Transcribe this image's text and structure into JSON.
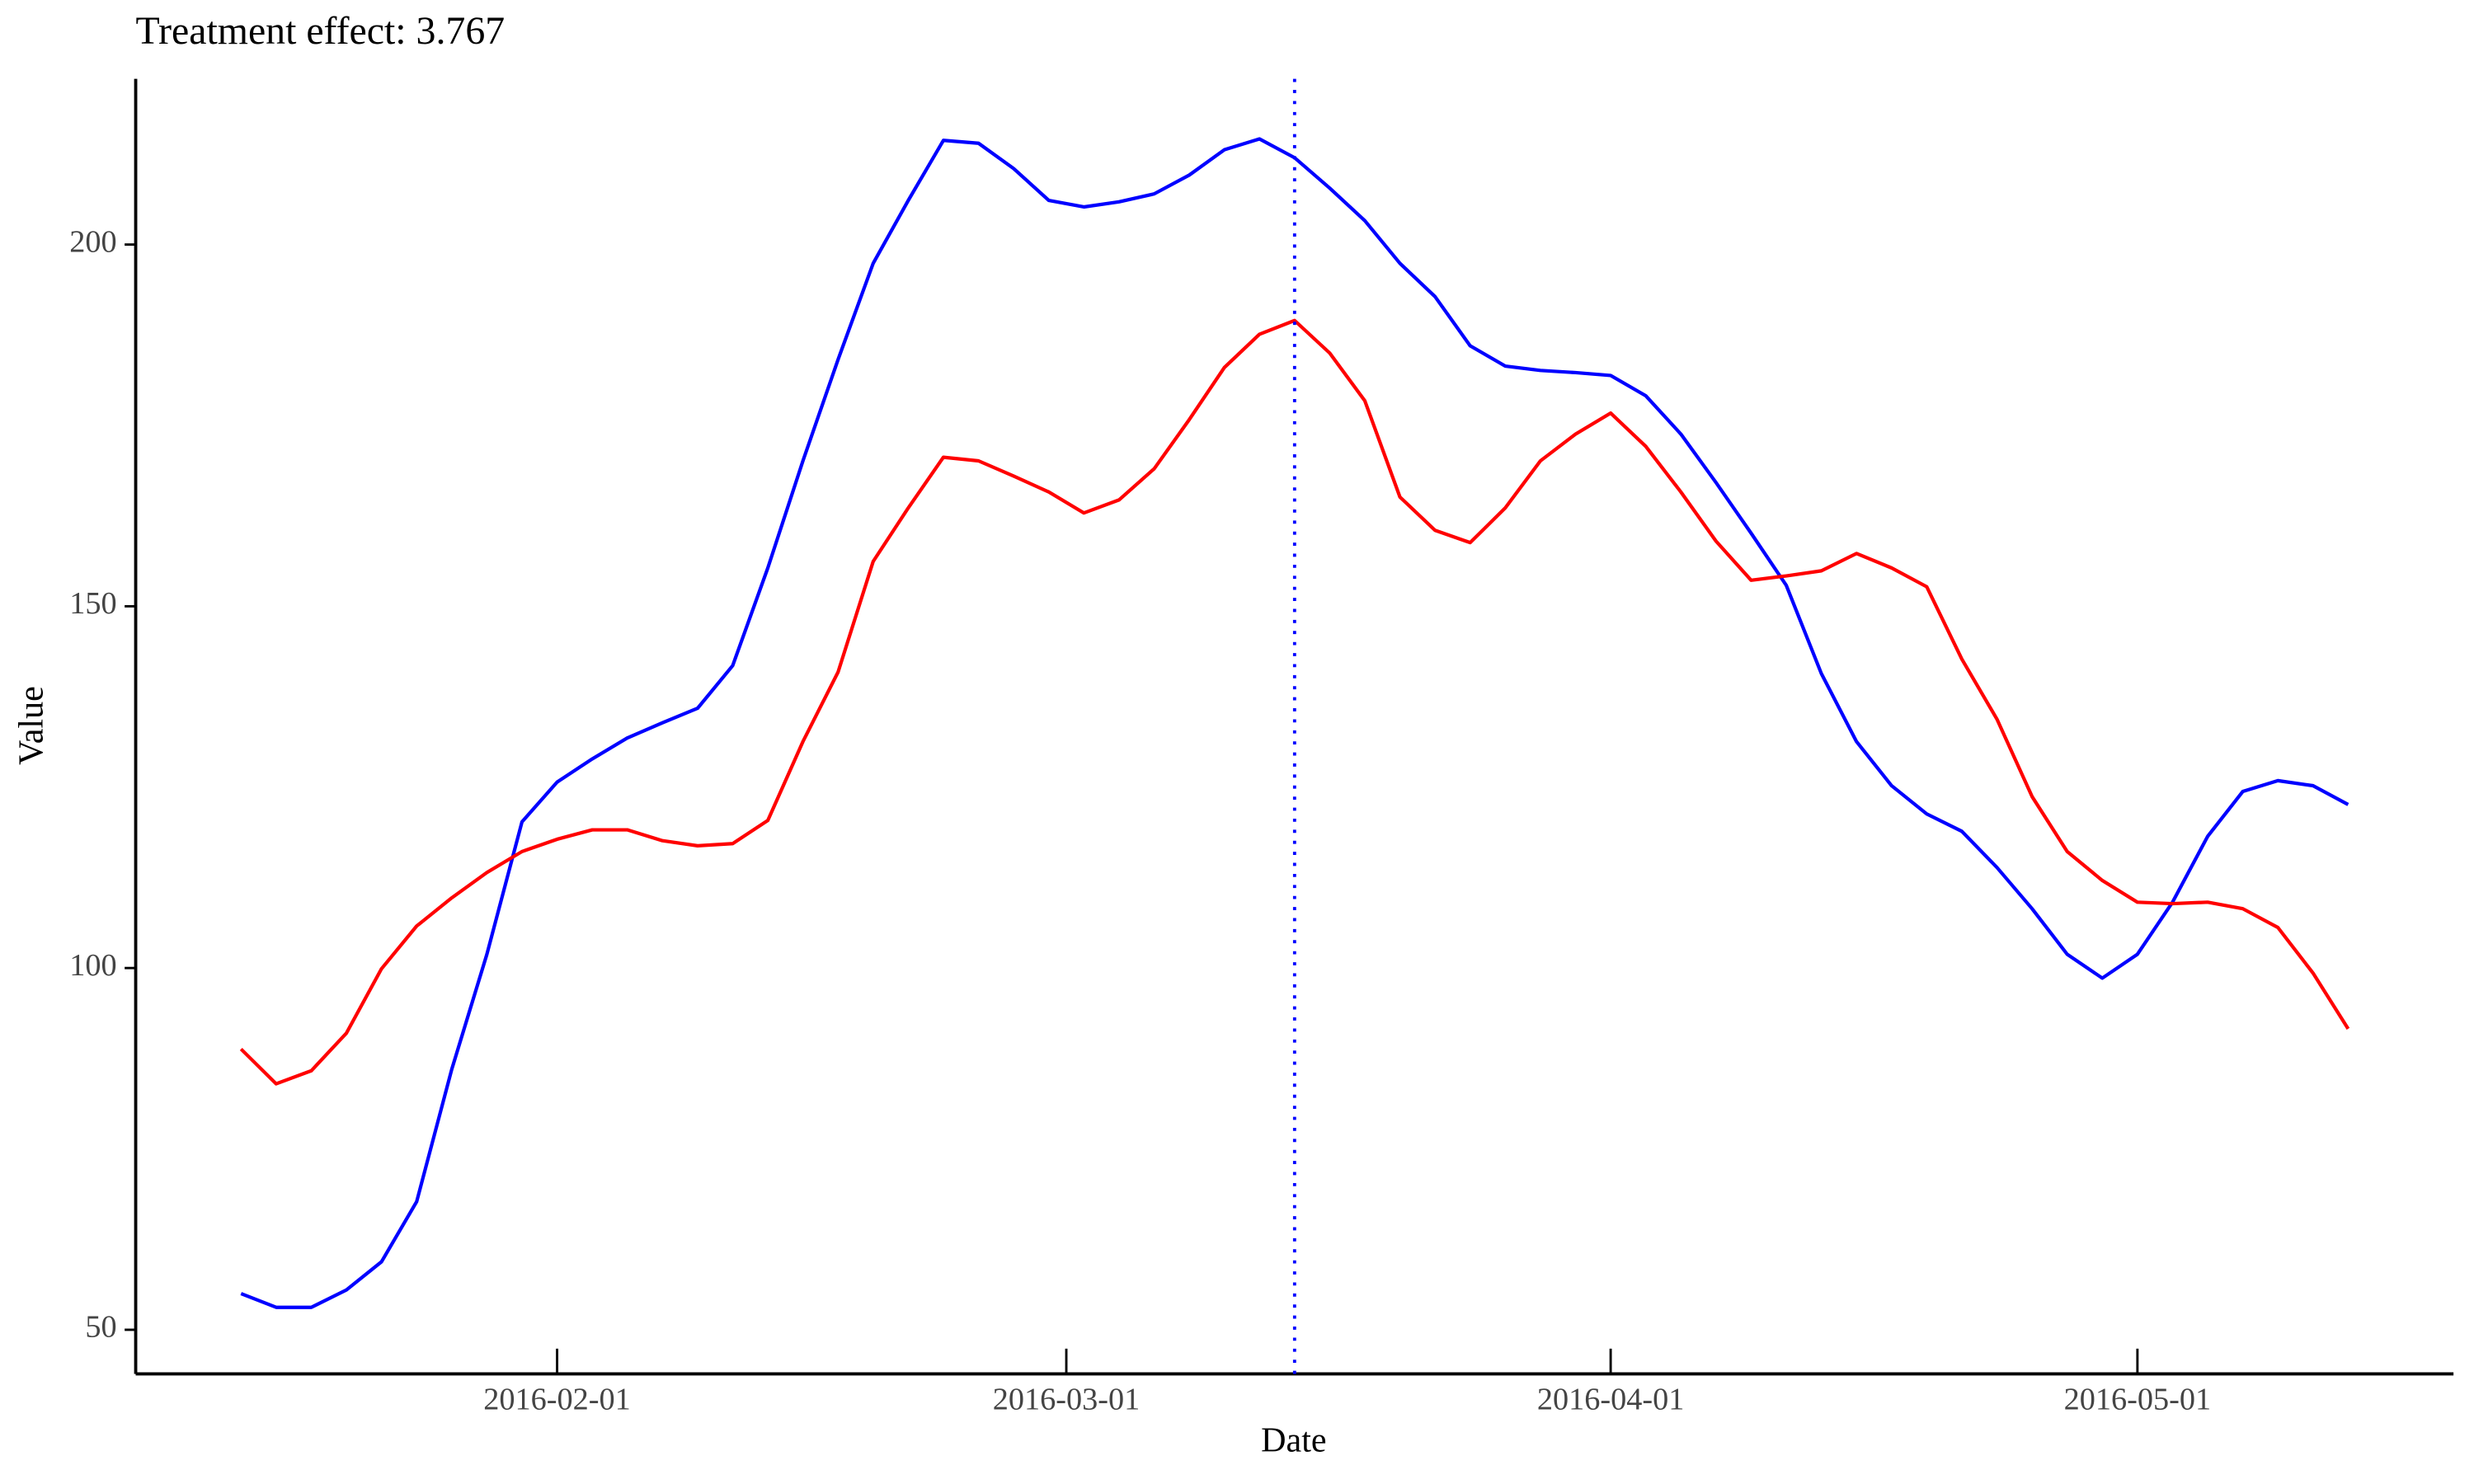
{
  "chart_data": {
    "type": "line",
    "title": "Treatment effect: 3.767",
    "xlabel": "Date",
    "ylabel": "Value",
    "x": [
      "2016-01-14",
      "2016-01-16",
      "2016-01-18",
      "2016-01-20",
      "2016-01-22",
      "2016-01-24",
      "2016-01-26",
      "2016-01-28",
      "2016-01-30",
      "2016-02-01",
      "2016-02-03",
      "2016-02-05",
      "2016-02-07",
      "2016-02-09",
      "2016-02-11",
      "2016-02-13",
      "2016-02-15",
      "2016-02-17",
      "2016-02-19",
      "2016-02-21",
      "2016-02-23",
      "2016-02-25",
      "2016-02-27",
      "2016-02-29",
      "2016-03-02",
      "2016-03-04",
      "2016-03-06",
      "2016-03-08",
      "2016-03-10",
      "2016-03-12",
      "2016-03-14",
      "2016-03-16",
      "2016-03-18",
      "2016-03-20",
      "2016-03-22",
      "2016-03-24",
      "2016-03-26",
      "2016-03-28",
      "2016-03-30",
      "2016-04-01",
      "2016-04-03",
      "2016-04-05",
      "2016-04-07",
      "2016-04-09",
      "2016-04-11",
      "2016-04-13",
      "2016-04-15",
      "2016-04-17",
      "2016-04-19",
      "2016-04-21",
      "2016-04-23",
      "2016-04-25",
      "2016-04-27",
      "2016-04-29",
      "2016-05-01",
      "2016-05-03",
      "2016-05-05",
      "2016-05-07",
      "2016-05-09",
      "2016-05-11",
      "2016-05-13"
    ],
    "series": [
      {
        "color": "#0000ff",
        "values": [
          55.0,
          53.1,
          53.1,
          55.5,
          59.4,
          67.7,
          86.0,
          101.9,
          120.2,
          125.7,
          128.9,
          131.8,
          133.9,
          135.9,
          141.8,
          155.3,
          170.1,
          184.1,
          197.4,
          206.1,
          214.4,
          214.0,
          210.5,
          206.1,
          205.2,
          205.9,
          207.0,
          209.6,
          213.1,
          214.6,
          212.0,
          207.8,
          203.3,
          197.4,
          192.8,
          186.0,
          183.2,
          182.6,
          182.3,
          181.9,
          179.1,
          173.8,
          167.1,
          160.1,
          152.9,
          140.7,
          131.3,
          125.2,
          121.3,
          118.9,
          113.9,
          108.2,
          101.9,
          98.6,
          101.9,
          109.1,
          118.2,
          124.4,
          125.9,
          125.2,
          122.6
        ]
      },
      {
        "color": "#ff0000",
        "values": [
          88.8,
          84.0,
          85.8,
          91.0,
          99.9,
          105.8,
          109.7,
          113.2,
          116.1,
          117.8,
          119.1,
          119.1,
          117.6,
          116.9,
          117.2,
          120.4,
          131.3,
          140.9,
          156.2,
          163.6,
          170.6,
          170.1,
          168.0,
          165.8,
          162.9,
          164.7,
          169.0,
          175.8,
          183.0,
          187.6,
          189.5,
          185.0,
          178.4,
          165.1,
          160.5,
          158.8,
          163.6,
          170.1,
          173.8,
          176.7,
          172.1,
          165.8,
          159.0,
          153.6,
          154.2,
          154.9,
          157.3,
          155.3,
          152.7,
          142.7,
          134.4,
          123.7,
          116.1,
          112.1,
          109.1,
          108.9,
          109.1,
          108.2,
          105.6,
          99.3,
          91.6
        ]
      }
    ],
    "vline_x": "2016-03-14",
    "vline_color": "#0000ff",
    "xlim": [
      "2016-01-08",
      "2016-05-19"
    ],
    "xticks": [
      "2016-02-01",
      "2016-03-01",
      "2016-04-01",
      "2016-05-01"
    ],
    "ylim": [
      43.9,
      222.9
    ],
    "yticks": [
      50,
      100,
      150,
      200
    ],
    "grid": false
  }
}
